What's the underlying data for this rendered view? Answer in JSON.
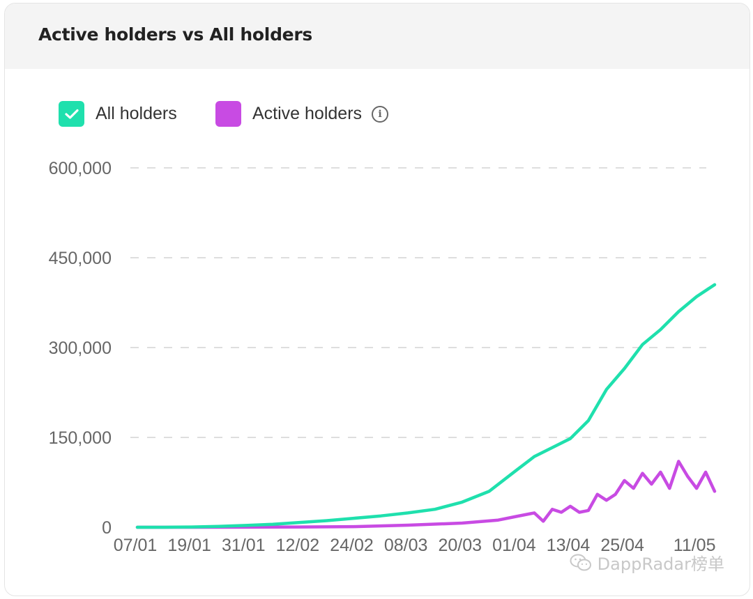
{
  "title": "Active holders vs All holders",
  "legend": [
    {
      "label": "All holders",
      "color": "#1fe0ad",
      "checked": true
    },
    {
      "label": "Active holders",
      "color": "#c84be3",
      "checked": false
    }
  ],
  "watermark": "DappRadar榜单",
  "chart_data": {
    "type": "line",
    "title": "Active holders vs All holders",
    "xlabel": "",
    "ylabel": "",
    "ylim": [
      0,
      600000
    ],
    "yticks": [
      0,
      150000,
      300000,
      450000,
      600000
    ],
    "ytick_labels": [
      "0",
      "150,000",
      "300,000",
      "450,000",
      "600,000"
    ],
    "xtick_labels": [
      "07/01",
      "19/01",
      "31/01",
      "12/02",
      "24/02",
      "08/03",
      "20/03",
      "01/04",
      "13/04",
      "25/04",
      "11/05"
    ],
    "grid": true,
    "legend_position": "top-left",
    "series": [
      {
        "name": "All holders",
        "color": "#1fe0ad",
        "points": [
          [
            "07/01",
            0
          ],
          [
            "13/01",
            0
          ],
          [
            "19/01",
            500
          ],
          [
            "25/01",
            1500
          ],
          [
            "31/01",
            3000
          ],
          [
            "06/02",
            5000
          ],
          [
            "12/02",
            8000
          ],
          [
            "18/02",
            11000
          ],
          [
            "24/02",
            15000
          ],
          [
            "02/03",
            19000
          ],
          [
            "08/03",
            24000
          ],
          [
            "14/03",
            30000
          ],
          [
            "20/03",
            42000
          ],
          [
            "26/03",
            60000
          ],
          [
            "01/04",
            95000
          ],
          [
            "05/04",
            118000
          ],
          [
            "09/04",
            133000
          ],
          [
            "13/04",
            148000
          ],
          [
            "17/04",
            178000
          ],
          [
            "21/04",
            230000
          ],
          [
            "25/04",
            265000
          ],
          [
            "29/04",
            305000
          ],
          [
            "03/05",
            330000
          ],
          [
            "07/05",
            360000
          ],
          [
            "11/05",
            385000
          ],
          [
            "15/05",
            405000
          ]
        ]
      },
      {
        "name": "Active holders",
        "color": "#c84be3",
        "points": [
          [
            "07/01",
            0
          ],
          [
            "19/01",
            0
          ],
          [
            "31/01",
            100
          ],
          [
            "12/02",
            500
          ],
          [
            "24/02",
            1000
          ],
          [
            "08/03",
            3500
          ],
          [
            "20/03",
            7000
          ],
          [
            "28/03",
            12000
          ],
          [
            "01/04",
            18000
          ],
          [
            "05/04",
            24000
          ],
          [
            "07/04",
            10000
          ],
          [
            "09/04",
            30000
          ],
          [
            "11/04",
            25000
          ],
          [
            "13/04",
            35000
          ],
          [
            "15/04",
            25000
          ],
          [
            "17/04",
            28000
          ],
          [
            "19/04",
            55000
          ],
          [
            "21/04",
            45000
          ],
          [
            "23/04",
            55000
          ],
          [
            "25/04",
            78000
          ],
          [
            "27/04",
            65000
          ],
          [
            "29/04",
            90000
          ],
          [
            "01/05",
            72000
          ],
          [
            "03/05",
            92000
          ],
          [
            "05/05",
            65000
          ],
          [
            "07/05",
            110000
          ],
          [
            "09/05",
            85000
          ],
          [
            "11/05",
            65000
          ],
          [
            "13/05",
            92000
          ],
          [
            "15/05",
            60000
          ]
        ]
      }
    ]
  }
}
